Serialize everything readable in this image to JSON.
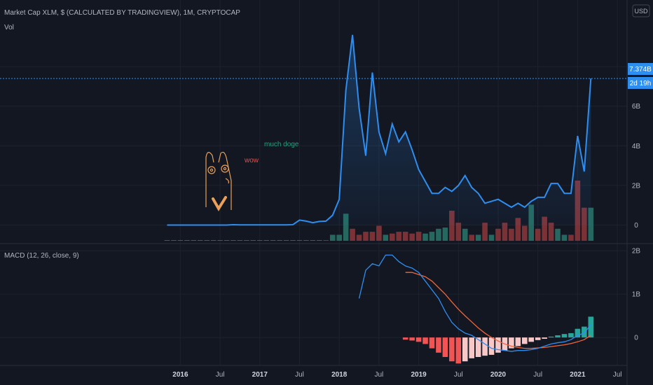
{
  "header": {
    "title": "Market Cap XLM, $ (CALCULATED BY TRADINGVIEW), 1M, CRYPTOCAP",
    "vol_label": "Vol",
    "currency_button": "USD"
  },
  "price_badges": {
    "last_value": "7.374B",
    "countdown": "2d 19h"
  },
  "annotations": {
    "green_text": "much doge",
    "red_text": "wow"
  },
  "colors": {
    "background": "#131722",
    "grid": "#1e222d",
    "line": "#2e8ef0",
    "vol_up": "#26685f",
    "vol_down": "#7b3236",
    "macd_line": "#2e8ef0",
    "signal_line": "#f2653a",
    "hist_neg_strong": "#f25454",
    "hist_neg_weak": "#f8c7c7",
    "hist_pos_strong": "#26a69a",
    "hist_pos_weak": "#b2dfdb",
    "annotation_green": "#2a9d7c",
    "annotation_red": "#e0504a",
    "doge_outline": "#e8a05a"
  },
  "chart_data": [
    {
      "id": "price",
      "type": "area",
      "title": "Market Cap XLM, $ (CALCULATED BY TRADINGVIEW), 1M, CRYPTOCAP",
      "x_start": "2015-11",
      "x_step": "1M",
      "y_tick_labels": [
        "8B",
        "6B",
        "4B",
        "2B",
        "0"
      ],
      "y_tick_values": [
        8,
        6,
        4,
        2,
        0
      ],
      "ylim": [
        -0.3,
        10.3
      ],
      "y_unit": "B USD",
      "values": [
        0.0,
        0.0,
        0.0,
        0.0,
        0.0,
        0.0,
        0.0,
        0.0,
        0.0,
        0.0,
        0.02,
        0.01,
        0.01,
        0.01,
        0.01,
        0.01,
        0.01,
        0.01,
        0.01,
        0.02,
        0.25,
        0.2,
        0.12,
        0.18,
        0.2,
        0.5,
        1.3,
        6.8,
        9.6,
        5.9,
        3.5,
        7.7,
        4.7,
        3.6,
        5.1,
        4.2,
        4.7,
        3.8,
        2.8,
        2.2,
        1.6,
        1.6,
        1.9,
        1.7,
        2.0,
        2.5,
        1.9,
        1.6,
        1.1,
        1.2,
        1.3,
        1.1,
        0.9,
        1.1,
        0.9,
        1.2,
        1.4,
        1.4,
        2.1,
        2.1,
        1.6,
        1.6,
        4.5,
        2.7,
        7.4
      ],
      "last_value_label": "7.374B"
    },
    {
      "id": "volume",
      "type": "bar",
      "title": "Vol",
      "x_start": "2015-11",
      "x_step": "1M",
      "values": [
        0.0,
        0.0,
        0.0,
        0.0,
        0.0,
        0.0,
        0.0,
        0.0,
        0.0,
        0.0,
        0.0,
        0.0,
        0.0,
        0.0,
        0.0,
        0.0,
        0.0,
        0.0,
        0.0,
        0.0,
        0.0,
        0.0,
        0.0,
        0.0,
        0.0,
        0.1,
        0.1,
        0.45,
        0.2,
        0.1,
        0.15,
        0.15,
        0.25,
        0.1,
        0.12,
        0.15,
        0.15,
        0.12,
        0.15,
        0.12,
        0.15,
        0.2,
        0.22,
        0.5,
        0.3,
        0.2,
        0.1,
        0.1,
        0.3,
        0.1,
        0.2,
        0.3,
        0.2,
        0.38,
        0.25,
        0.6,
        0.2,
        0.4,
        0.3,
        0.2,
        0.1,
        0.1,
        1.0,
        0.55,
        0.55
      ],
      "directions": [
        "up",
        "up",
        "up",
        "up",
        "up",
        "up",
        "up",
        "up",
        "up",
        "up",
        "up",
        "up",
        "up",
        "up",
        "up",
        "up",
        "up",
        "up",
        "up",
        "up",
        "up",
        "up",
        "up",
        "up",
        "down",
        "up",
        "up",
        "up",
        "down",
        "down",
        "down",
        "down",
        "down",
        "up",
        "down",
        "down",
        "down",
        "down",
        "down",
        "up",
        "up",
        "up",
        "up",
        "down",
        "down",
        "up",
        "down",
        "up",
        "down",
        "up",
        "down",
        "down",
        "down",
        "down",
        "down",
        "up",
        "down",
        "down",
        "down",
        "up",
        "up",
        "down",
        "down",
        "down",
        "up"
      ]
    },
    {
      "id": "macd",
      "type": "bar",
      "title": "MACD (12, 26, close, 9)",
      "x_start": "2015-11",
      "x_step": "1M",
      "y_tick_labels": [
        "2B",
        "1B",
        "0"
      ],
      "y_tick_values": [
        2,
        1,
        0
      ],
      "ylim": [
        -0.45,
        2.1
      ],
      "macd_values": [
        null,
        null,
        null,
        null,
        null,
        null,
        null,
        null,
        null,
        null,
        null,
        null,
        null,
        null,
        null,
        null,
        null,
        null,
        null,
        null,
        null,
        null,
        null,
        null,
        null,
        null,
        null,
        null,
        null,
        0.9,
        1.55,
        1.7,
        1.65,
        1.9,
        1.9,
        1.75,
        1.65,
        1.6,
        1.5,
        1.3,
        1.1,
        0.9,
        0.6,
        0.35,
        0.2,
        0.1,
        0.05,
        -0.05,
        -0.15,
        -0.25,
        -0.28,
        -0.3,
        -0.32,
        -0.3,
        -0.3,
        -0.28,
        -0.25,
        -0.2,
        -0.15,
        -0.12,
        -0.1,
        -0.05,
        0.05,
        0.1,
        0.3
      ],
      "signal_values": [
        null,
        null,
        null,
        null,
        null,
        null,
        null,
        null,
        null,
        null,
        null,
        null,
        null,
        null,
        null,
        null,
        null,
        null,
        null,
        null,
        null,
        null,
        null,
        null,
        null,
        null,
        null,
        null,
        null,
        null,
        null,
        null,
        null,
        null,
        null,
        null,
        1.5,
        1.5,
        1.45,
        1.4,
        1.3,
        1.15,
        1.0,
        0.82,
        0.65,
        0.5,
        0.36,
        0.22,
        0.1,
        0.0,
        -0.08,
        -0.15,
        -0.2,
        -0.23,
        -0.25,
        -0.25,
        -0.24,
        -0.23,
        -0.21,
        -0.19,
        -0.17,
        -0.14,
        -0.1,
        -0.05,
        0.05
      ],
      "histogram": [
        null,
        null,
        null,
        null,
        null,
        null,
        null,
        null,
        null,
        null,
        null,
        null,
        null,
        null,
        null,
        null,
        null,
        null,
        null,
        null,
        null,
        null,
        null,
        null,
        null,
        null,
        null,
        null,
        null,
        null,
        null,
        null,
        null,
        null,
        null,
        null,
        -0.05,
        -0.07,
        -0.1,
        -0.15,
        -0.25,
        -0.35,
        -0.45,
        -0.55,
        -0.6,
        -0.55,
        -0.48,
        -0.45,
        -0.42,
        -0.4,
        -0.35,
        -0.3,
        -0.25,
        -0.2,
        -0.15,
        -0.1,
        -0.06,
        -0.03,
        0.02,
        0.05,
        0.08,
        0.1,
        0.2,
        0.25,
        0.48
      ],
      "legend": "none"
    }
  ],
  "x_axis": {
    "tick_labels": [
      "2016",
      "Jul",
      "2017",
      "Jul",
      "2018",
      "Jul",
      "2019",
      "Jul",
      "2020",
      "Jul",
      "2021",
      "Jul"
    ],
    "tick_months": [
      2,
      8,
      14,
      20,
      26,
      32,
      38,
      44,
      50,
      56,
      62,
      68
    ]
  }
}
